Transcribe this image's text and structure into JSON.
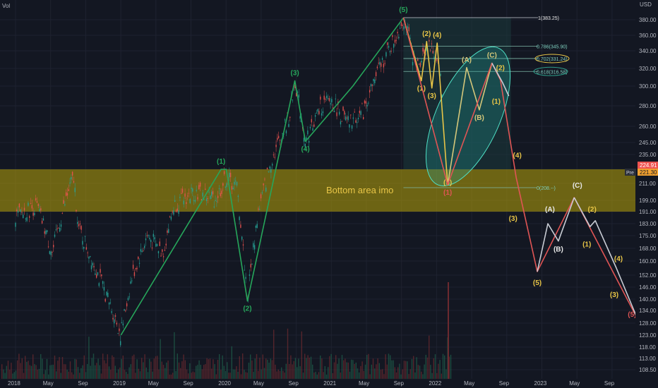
{
  "chart_data": {
    "type": "line",
    "title": "",
    "top_left_label": "Vol",
    "currency": "USD",
    "x_ticks": [
      "2018",
      "May",
      "Sep",
      "2019",
      "May",
      "Sep",
      "2020",
      "May",
      "Sep",
      "2021",
      "May",
      "Sep",
      "2022",
      "May",
      "Sep",
      "2023",
      "May",
      "Sep"
    ],
    "y_ticks": [
      "380.00",
      "360.00",
      "340.00",
      "320.00",
      "300.00",
      "280.00",
      "260.00",
      "245.00",
      "235.00",
      "221.00",
      "211.00",
      "199.00",
      "191.00",
      "183.00",
      "175.00",
      "168.00",
      "160.00",
      "152.00",
      "146.00",
      "140.00",
      "134.00",
      "128.00",
      "123.00",
      "118.00",
      "113.00",
      "108.50"
    ],
    "price_tags": {
      "last": "224.91",
      "pre_label": "Pre",
      "pre": "221.30"
    },
    "zone": {
      "label": "Bottom area imo",
      "upper": 221,
      "lower": 191,
      "color": "#b8a40a"
    },
    "fib_levels": [
      {
        "label": "1(383.25)",
        "value": 383.25
      },
      {
        "label": "0.786(345.90)",
        "value": 345.9
      },
      {
        "label": "0.702(331.24)",
        "value": 331.24
      },
      {
        "label": "0.618(316.58)",
        "value": 316.58
      },
      {
        "label": "0(208.--)",
        "value": 208.0
      }
    ],
    "series": [
      {
        "color": "#26a65b",
        "points": [
          [
            2019.0,
            123
          ],
          [
            2019.95,
            221
          ],
          [
            2020.0,
            221
          ],
          [
            2020.2,
            139
          ],
          [
            2020.65,
            306
          ],
          [
            2020.75,
            246
          ],
          [
            2021.2,
            300
          ],
          [
            2021.68,
            383
          ]
        ],
        "labels": [
          {
            "t": "(1)",
            "x": 2019.95,
            "y": 221,
            "pos": "above"
          },
          {
            "t": "(2)",
            "x": 2020.2,
            "y": 139,
            "pos": "below"
          },
          {
            "t": "(3)",
            "x": 2020.65,
            "y": 306,
            "pos": "above"
          },
          {
            "t": "(4)",
            "x": 2020.75,
            "y": 246,
            "pos": "below"
          },
          {
            "t": "(5)",
            "x": 2021.68,
            "y": 383,
            "pos": "above"
          }
        ]
      },
      {
        "color": "#e8c547",
        "points": [
          [
            2021.68,
            383
          ],
          [
            2021.85,
            306
          ],
          [
            2021.9,
            352
          ],
          [
            2021.95,
            298
          ],
          [
            2022.0,
            350
          ],
          [
            2022.1,
            210
          ]
        ],
        "labels": [
          {
            "t": "(1)",
            "x": 2021.85,
            "y": 306,
            "pos": "below"
          },
          {
            "t": "(2)",
            "x": 2021.9,
            "y": 352,
            "pos": "above"
          },
          {
            "t": "(3)",
            "x": 2021.95,
            "y": 298,
            "pos": "below"
          },
          {
            "t": "(4)",
            "x": 2022.0,
            "y": 350,
            "pos": "above"
          },
          {
            "t": "(5)",
            "x": 2022.1,
            "y": 210,
            "pos": "label"
          }
        ]
      },
      {
        "color": "#d4c77a",
        "points": [
          [
            2022.1,
            210
          ],
          [
            2022.28,
            321
          ],
          [
            2022.4,
            276
          ],
          [
            2022.52,
            326
          ]
        ],
        "labels": [
          {
            "t": "(A)",
            "x": 2022.28,
            "y": 321,
            "pos": "above"
          },
          {
            "t": "(B)",
            "x": 2022.4,
            "y": 276,
            "pos": "below"
          },
          {
            "t": "(C)",
            "x": 2022.52,
            "y": 326,
            "pos": "above"
          }
        ]
      },
      {
        "color": "#e05555",
        "points": [
          [
            2021.68,
            383
          ],
          [
            2022.1,
            210
          ],
          [
            2022.52,
            326
          ],
          [
            2022.6,
            307
          ],
          [
            2022.75,
            215
          ],
          [
            2022.95,
            154
          ],
          [
            2023.3,
            201
          ],
          [
            2023.9,
            130
          ]
        ],
        "labels": [
          {
            "t": "(1)",
            "x": 2022.1,
            "y": 210,
            "pos": "below"
          },
          {
            "t": "(5)",
            "x": 2023.85,
            "y": 131,
            "pos": "label"
          }
        ]
      },
      {
        "color": "#c8ccd4",
        "points": [
          [
            2022.52,
            326
          ],
          [
            2022.62,
            304
          ],
          [
            2022.68,
            290
          ]
        ],
        "labels": []
      },
      {
        "color": "#c8ccd4",
        "points": [
          [
            2022.95,
            154
          ],
          [
            2023.05,
            183
          ],
          [
            2023.15,
            172
          ],
          [
            2023.3,
            201
          ]
        ],
        "labels": []
      },
      {
        "color": "#c8ccd4",
        "points": [
          [
            2023.3,
            201
          ],
          [
            2023.45,
            181
          ],
          [
            2023.5,
            185
          ],
          [
            2023.7,
            156
          ],
          [
            2023.9,
            130
          ]
        ],
        "labels": []
      }
    ],
    "extra_labels": [
      {
        "t": "(2)",
        "x": 2022.6,
        "y": 318,
        "color": "#e8c547"
      },
      {
        "t": "(1)",
        "x": 2022.56,
        "y": 282,
        "color": "#e8c547"
      },
      {
        "t": "(4)",
        "x": 2022.76,
        "y": 232,
        "color": "#e8c547"
      },
      {
        "t": "(3)",
        "x": 2022.72,
        "y": 185,
        "color": "#e8c547"
      },
      {
        "t": "(5)",
        "x": 2022.95,
        "y": 147,
        "color": "#e8c547"
      },
      {
        "t": "(A)",
        "x": 2023.07,
        "y": 191,
        "color": "#e8e8e8"
      },
      {
        "t": "(B)",
        "x": 2023.15,
        "y": 166,
        "color": "#e8e8e8"
      },
      {
        "t": "(C)",
        "x": 2023.33,
        "y": 208,
        "color": "#e8e8e8"
      },
      {
        "t": "(2)",
        "x": 2023.47,
        "y": 191,
        "color": "#e8c547"
      },
      {
        "t": "(1)",
        "x": 2023.42,
        "y": 169,
        "color": "#e8c547"
      },
      {
        "t": "(4)",
        "x": 2023.72,
        "y": 160,
        "color": "#e8c547"
      },
      {
        "t": "(3)",
        "x": 2023.68,
        "y": 141,
        "color": "#e8c547"
      },
      {
        "t": "(5)",
        "x": 2023.93,
        "y": 128,
        "color": "#e8c547"
      }
    ]
  }
}
